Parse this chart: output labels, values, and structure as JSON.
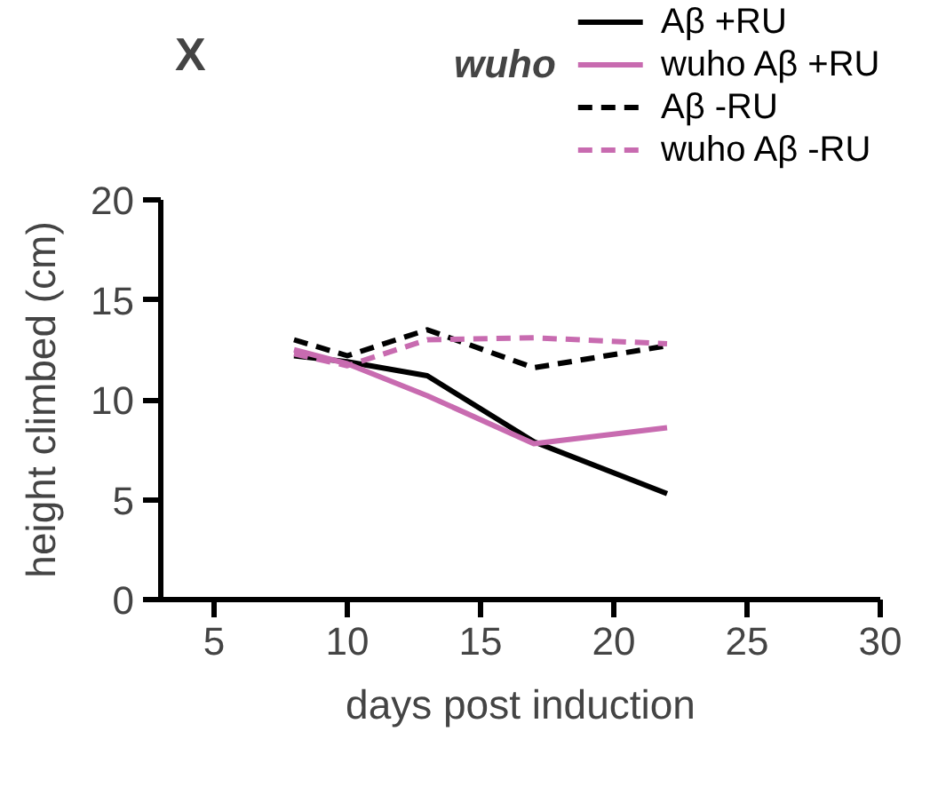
{
  "chart_data": {
    "type": "line",
    "title": "wuho",
    "xlabel": "days post induction",
    "ylabel": "height climbed (cm)",
    "annotations": [
      "X"
    ],
    "x": [
      8,
      10,
      13,
      17,
      22
    ],
    "series": [
      {
        "name": "Aβ +RU",
        "color": "#000000",
        "line_style": "solid",
        "values": [
          12.2,
          11.9,
          11.2,
          7.9,
          5.3
        ]
      },
      {
        "name": "wuho Aβ +RU",
        "color": "#c86bb0",
        "line_style": "solid",
        "values": [
          12.5,
          11.8,
          10.2,
          7.8,
          8.6
        ]
      },
      {
        "name": "Aβ -RU",
        "color": "#000000",
        "line_style": "dashed",
        "values": [
          13.0,
          12.2,
          13.5,
          11.6,
          12.7
        ]
      },
      {
        "name": "wuho Aβ -RU",
        "color": "#c86bb0",
        "line_style": "dashed",
        "values": [
          12.3,
          11.7,
          13.0,
          13.1,
          12.8
        ]
      }
    ],
    "xlim": [
      3,
      30
    ],
    "xticks": [
      5,
      10,
      15,
      20,
      25,
      30
    ],
    "ylim": [
      0,
      20
    ],
    "yticks": [
      0,
      5,
      10,
      15,
      20
    ],
    "grid": false,
    "legend": "top right"
  }
}
